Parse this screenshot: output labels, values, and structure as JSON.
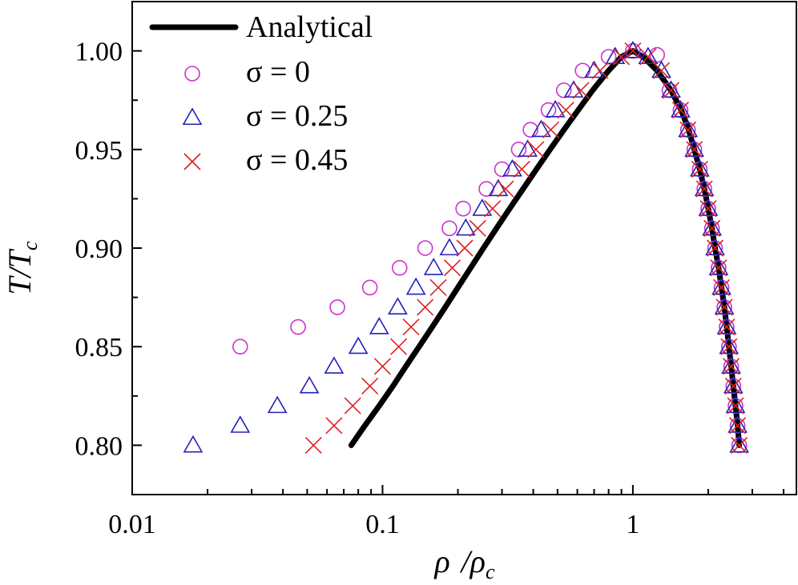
{
  "chart_data": {
    "type": "line",
    "xscale": "log",
    "xlim": [
      0.01,
      4.5
    ],
    "ylim": [
      0.775,
      1.025
    ],
    "xticks": [
      0.01,
      0.1,
      1
    ],
    "xtick_labels": [
      "0.01",
      "0.1",
      "1"
    ],
    "yticks": [
      0.8,
      0.85,
      0.9,
      0.95,
      1.0
    ],
    "ytick_labels": [
      "0.80",
      "0.85",
      "0.90",
      "0.95",
      "1.00"
    ],
    "xlabel": {
      "main": "ρ",
      "sep": "/",
      "main2": "ρ",
      "sub": "c"
    },
    "ylabel": {
      "main": "T/T",
      "sub": "c"
    },
    "grid": false,
    "legend_position": "top-left",
    "colors": {
      "analytical": "#000000",
      "sigma0": "#cc33cc",
      "sigma025": "#2222bb",
      "sigma045": "#dd2222"
    },
    "series": [
      {
        "name": "Analytical",
        "style": "line",
        "points": [
          [
            0.075,
            0.8
          ],
          [
            0.085,
            0.81
          ],
          [
            0.097,
            0.82
          ],
          [
            0.11,
            0.83
          ],
          [
            0.124,
            0.84
          ],
          [
            0.14,
            0.85
          ],
          [
            0.158,
            0.86
          ],
          [
            0.178,
            0.87
          ],
          [
            0.2,
            0.88
          ],
          [
            0.225,
            0.89
          ],
          [
            0.253,
            0.9
          ],
          [
            0.285,
            0.91
          ],
          [
            0.322,
            0.92
          ],
          [
            0.364,
            0.93
          ],
          [
            0.412,
            0.94
          ],
          [
            0.467,
            0.95
          ],
          [
            0.53,
            0.96
          ],
          [
            0.605,
            0.97
          ],
          [
            0.69,
            0.98
          ],
          [
            0.8,
            0.99
          ],
          [
            0.9,
            0.997
          ],
          [
            1.0,
            1.0
          ],
          [
            1.1,
            0.997
          ],
          [
            1.25,
            0.99
          ],
          [
            1.42,
            0.98
          ],
          [
            1.56,
            0.97
          ],
          [
            1.67,
            0.96
          ],
          [
            1.76,
            0.95
          ],
          [
            1.85,
            0.94
          ],
          [
            1.93,
            0.93
          ],
          [
            2.0,
            0.92
          ],
          [
            2.07,
            0.91
          ],
          [
            2.13,
            0.9
          ],
          [
            2.2,
            0.89
          ],
          [
            2.26,
            0.88
          ],
          [
            2.32,
            0.87
          ],
          [
            2.37,
            0.86
          ],
          [
            2.42,
            0.85
          ],
          [
            2.47,
            0.84
          ],
          [
            2.52,
            0.83
          ],
          [
            2.57,
            0.82
          ],
          [
            2.62,
            0.81
          ],
          [
            2.66,
            0.8
          ]
        ]
      },
      {
        "name": "σ = 0",
        "style": "circle",
        "points": [
          [
            0.027,
            0.85
          ],
          [
            0.046,
            0.86
          ],
          [
            0.066,
            0.87
          ],
          [
            0.089,
            0.88
          ],
          [
            0.117,
            0.89
          ],
          [
            0.148,
            0.9
          ],
          [
            0.185,
            0.91
          ],
          [
            0.21,
            0.92
          ],
          [
            0.26,
            0.93
          ],
          [
            0.3,
            0.94
          ],
          [
            0.35,
            0.95
          ],
          [
            0.39,
            0.96
          ],
          [
            0.46,
            0.97
          ],
          [
            0.53,
            0.98
          ],
          [
            0.63,
            0.99
          ],
          [
            0.8,
            0.997
          ],
          [
            1.0,
            1.0
          ],
          [
            1.25,
            0.998
          ],
          [
            1.4,
            0.98
          ],
          [
            1.55,
            0.97
          ],
          [
            1.66,
            0.96
          ],
          [
            1.76,
            0.95
          ],
          [
            1.85,
            0.94
          ],
          [
            1.93,
            0.93
          ],
          [
            2.0,
            0.92
          ],
          [
            2.07,
            0.91
          ],
          [
            2.13,
            0.9
          ],
          [
            2.2,
            0.89
          ],
          [
            2.26,
            0.88
          ],
          [
            2.32,
            0.87
          ],
          [
            2.37,
            0.86
          ],
          [
            2.42,
            0.85
          ],
          [
            2.47,
            0.84
          ],
          [
            2.52,
            0.83
          ],
          [
            2.57,
            0.82
          ],
          [
            2.62,
            0.81
          ],
          [
            2.66,
            0.8
          ]
        ]
      },
      {
        "name": "σ = 0.25",
        "style": "triangle",
        "points": [
          [
            0.0175,
            0.8
          ],
          [
            0.027,
            0.81
          ],
          [
            0.038,
            0.82
          ],
          [
            0.051,
            0.83
          ],
          [
            0.064,
            0.84
          ],
          [
            0.08,
            0.85
          ],
          [
            0.097,
            0.86
          ],
          [
            0.115,
            0.87
          ],
          [
            0.136,
            0.88
          ],
          [
            0.16,
            0.89
          ],
          [
            0.185,
            0.9
          ],
          [
            0.215,
            0.91
          ],
          [
            0.25,
            0.92
          ],
          [
            0.29,
            0.93
          ],
          [
            0.33,
            0.94
          ],
          [
            0.38,
            0.95
          ],
          [
            0.43,
            0.96
          ],
          [
            0.49,
            0.97
          ],
          [
            0.58,
            0.98
          ],
          [
            0.7,
            0.99
          ],
          [
            0.85,
            0.997
          ],
          [
            1.0,
            1.0
          ],
          [
            1.15,
            0.997
          ],
          [
            1.3,
            0.99
          ],
          [
            1.42,
            0.98
          ],
          [
            1.55,
            0.97
          ],
          [
            1.66,
            0.96
          ],
          [
            1.76,
            0.95
          ],
          [
            1.85,
            0.94
          ],
          [
            1.93,
            0.93
          ],
          [
            2.0,
            0.92
          ],
          [
            2.07,
            0.91
          ],
          [
            2.13,
            0.9
          ],
          [
            2.2,
            0.89
          ],
          [
            2.26,
            0.88
          ],
          [
            2.32,
            0.87
          ],
          [
            2.37,
            0.86
          ],
          [
            2.42,
            0.85
          ],
          [
            2.47,
            0.84
          ],
          [
            2.52,
            0.83
          ],
          [
            2.57,
            0.82
          ],
          [
            2.62,
            0.81
          ],
          [
            2.66,
            0.8
          ]
        ]
      },
      {
        "name": "σ = 0.45",
        "style": "cross",
        "points": [
          [
            0.053,
            0.8
          ],
          [
            0.064,
            0.81
          ],
          [
            0.076,
            0.82
          ],
          [
            0.089,
            0.83
          ],
          [
            0.1,
            0.84
          ],
          [
            0.116,
            0.85
          ],
          [
            0.13,
            0.86
          ],
          [
            0.148,
            0.87
          ],
          [
            0.167,
            0.88
          ],
          [
            0.19,
            0.89
          ],
          [
            0.213,
            0.9
          ],
          [
            0.24,
            0.91
          ],
          [
            0.275,
            0.92
          ],
          [
            0.31,
            0.93
          ],
          [
            0.36,
            0.94
          ],
          [
            0.41,
            0.95
          ],
          [
            0.47,
            0.96
          ],
          [
            0.54,
            0.97
          ],
          [
            0.62,
            0.98
          ],
          [
            0.74,
            0.99
          ],
          [
            0.9,
            0.997
          ],
          [
            1.0,
            1.0
          ],
          [
            1.15,
            0.997
          ],
          [
            1.3,
            0.99
          ],
          [
            1.42,
            0.98
          ],
          [
            1.55,
            0.97
          ],
          [
            1.66,
            0.96
          ],
          [
            1.76,
            0.95
          ],
          [
            1.85,
            0.94
          ],
          [
            1.93,
            0.93
          ],
          [
            2.0,
            0.92
          ],
          [
            2.07,
            0.91
          ],
          [
            2.13,
            0.9
          ],
          [
            2.2,
            0.89
          ],
          [
            2.26,
            0.88
          ],
          [
            2.32,
            0.87
          ],
          [
            2.37,
            0.86
          ],
          [
            2.42,
            0.85
          ],
          [
            2.47,
            0.84
          ],
          [
            2.52,
            0.83
          ],
          [
            2.57,
            0.82
          ],
          [
            2.62,
            0.81
          ],
          [
            2.66,
            0.8
          ]
        ]
      }
    ]
  }
}
